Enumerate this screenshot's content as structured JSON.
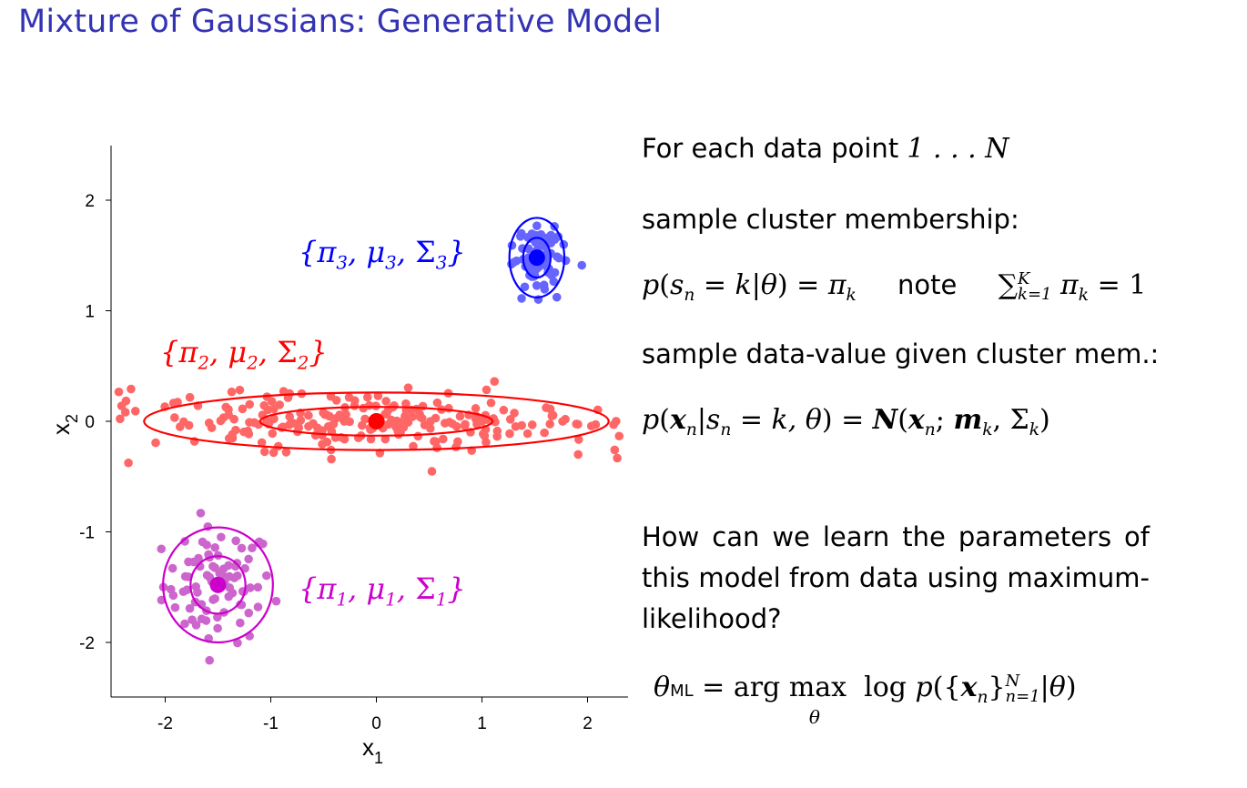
{
  "title": "Mixture of Gaussians: Generative Model",
  "chart_data": {
    "type": "scatter",
    "xlabel": "x1",
    "ylabel": "x2",
    "xlim": [
      -2.5,
      2.35
    ],
    "ylim": [
      -2.5,
      2.5
    ],
    "xticks": [
      -2,
      -1,
      0,
      1,
      2
    ],
    "yticks": [
      -2,
      -1,
      0,
      1,
      2
    ],
    "grid": false,
    "clusters": [
      {
        "label": "{π1, μ1, Σ1}",
        "color": "#cc66cc",
        "center_color": "#cc00cc",
        "mean": [
          -1.5,
          -1.48
        ],
        "std": [
          0.26,
          0.26
        ],
        "n": 85
      },
      {
        "label": "{π2, μ2, Σ2}",
        "color": "#ff6666",
        "center_color": "#ff0000",
        "mean": [
          0.0,
          0.0
        ],
        "std": [
          1.1,
          0.13
        ],
        "n": 230
      },
      {
        "label": "{π3, μ3, Σ3}",
        "color": "#6666ff",
        "center_color": "#0000ff",
        "mean": [
          1.52,
          1.48
        ],
        "std": [
          0.13,
          0.18
        ],
        "n": 80
      }
    ]
  },
  "text": {
    "line1": "For each data point",
    "line1_math": "1 . . . N",
    "line2": "sample cluster membership:",
    "note": "note",
    "line4": "sample data-value given cluster mem.:",
    "question": "How can we learn the parameters of this model from data using maximum-likelihood?"
  }
}
